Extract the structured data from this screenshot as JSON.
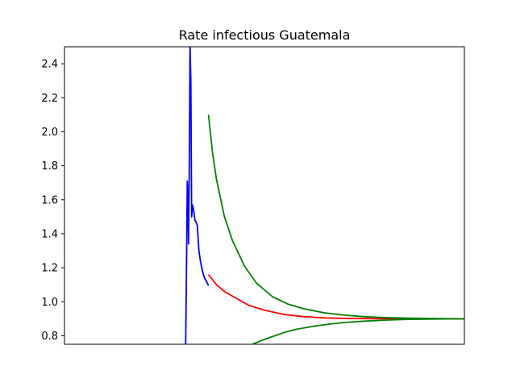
{
  "chart_data": {
    "type": "line",
    "title": "Rate infectious Guatemala",
    "xlabel": "",
    "ylabel": "",
    "x_ticks_visible": false,
    "xlim": [
      0,
      100
    ],
    "ylim": [
      0.75,
      2.5
    ],
    "yticks": [
      0.8,
      1.0,
      1.2,
      1.4,
      1.6,
      1.8,
      2.0,
      2.2,
      2.4
    ],
    "ytick_labels": [
      "0.8",
      "1.0",
      "1.2",
      "1.4",
      "1.6",
      "1.8",
      "2.0",
      "2.2",
      "2.4"
    ],
    "grid": false,
    "legend": "none",
    "series": [
      {
        "color": "#0000ff",
        "x": [
          30.3,
          30.5,
          30.7,
          30.9,
          31.0,
          31.2,
          31.4,
          31.6,
          31.8,
          32.0,
          32.2,
          32.4,
          32.6,
          32.9,
          33.2,
          33.6,
          34.0,
          34.5,
          35.0,
          35.5,
          36.0
        ],
        "y": [
          0.75,
          1.2,
          1.71,
          1.6,
          1.34,
          1.8,
          2.5,
          2.3,
          1.5,
          1.57,
          1.55,
          1.52,
          1.48,
          1.47,
          1.45,
          1.3,
          1.24,
          1.18,
          1.14,
          1.12,
          1.095
        ]
      },
      {
        "color": "#ff0000",
        "x": [
          36.0,
          38,
          40,
          43,
          46,
          50,
          55,
          60,
          65,
          70,
          75,
          80,
          85,
          90,
          95,
          100
        ],
        "y": [
          1.16,
          1.1,
          1.06,
          1.02,
          0.98,
          0.95,
          0.925,
          0.912,
          0.905,
          0.902,
          0.901,
          0.9,
          0.9,
          0.9,
          0.9,
          0.9
        ]
      },
      {
        "color": "#008000",
        "x": [
          36.0,
          37,
          38,
          40,
          42,
          45,
          48,
          52,
          56,
          60,
          65,
          70,
          75,
          80,
          85,
          90,
          95,
          100
        ],
        "y": [
          2.1,
          1.88,
          1.72,
          1.5,
          1.36,
          1.21,
          1.11,
          1.03,
          0.985,
          0.958,
          0.935,
          0.921,
          0.912,
          0.907,
          0.904,
          0.902,
          0.901,
          0.9
        ]
      },
      {
        "color": "#008000",
        "x": [
          47,
          49,
          52,
          55,
          58,
          62,
          66,
          70,
          75,
          80,
          85,
          90,
          95,
          100
        ],
        "y": [
          0.75,
          0.77,
          0.795,
          0.82,
          0.838,
          0.855,
          0.868,
          0.878,
          0.886,
          0.892,
          0.896,
          0.898,
          0.899,
          0.9
        ]
      }
    ]
  }
}
